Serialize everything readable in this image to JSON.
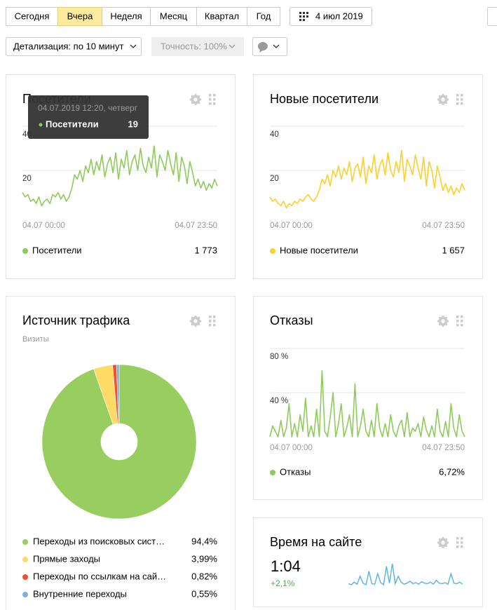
{
  "toolbar": {
    "periods": [
      "Сегодня",
      "Вчера",
      "Неделя",
      "Месяц",
      "Квартал",
      "Год"
    ],
    "selected_period": "Вчера",
    "date": "4 июл 2019",
    "detail": "Детализация: по 10 минут",
    "accuracy": "Точность: 100%"
  },
  "widgets": [
    {
      "title": "Посетители",
      "tooltip": {
        "time": "04.07.2019 12:20, четверг",
        "value": 19
      },
      "chart_data": {
        "type": "line",
        "x_labels": [
          "04.07 00:00",
          "04.07 23:50"
        ],
        "ylim": [
          0,
          40
        ],
        "yticks": [
          20,
          40
        ],
        "series": [
          {
            "name": "Посетители",
            "color": "#8fcb5b",
            "values": [
              10,
              8,
              9,
              6,
              7,
              5,
              8,
              4,
              6,
              7,
              5,
              9,
              8,
              10,
              7,
              9,
              6,
              8,
              12,
              18,
              16,
              20,
              15,
              22,
              19,
              25,
              18,
              24,
              20,
              27,
              17,
              23,
              26,
              19,
              28,
              16,
              25,
              21,
              29,
              18,
              24,
              27,
              20,
              30,
              22,
              19,
              26,
              21,
              31,
              17,
              27,
              24,
              20,
              29,
              23,
              18,
              28,
              15,
              26,
              22,
              14,
              24,
              19,
              13,
              16,
              12,
              15,
              11,
              14,
              12,
              16,
              13
            ]
          }
        ],
        "total": 1773,
        "total_label": "1 773"
      }
    },
    {
      "title": "Новые посетители",
      "chart_data": {
        "type": "line",
        "x_labels": [
          "04.07 00:00",
          "04.07 23:50"
        ],
        "ylim": [
          0,
          40
        ],
        "yticks": [
          20,
          40
        ],
        "series": [
          {
            "name": "Новые посетители",
            "color": "#fcd02d",
            "values": [
              8,
              6,
              7,
              5,
              4,
              6,
              3,
              5,
              4,
              6,
              5,
              7,
              6,
              8,
              9,
              7,
              6,
              8,
              11,
              16,
              14,
              18,
              13,
              20,
              17,
              22,
              16,
              21,
              18,
              24,
              15,
              21,
              23,
              17,
              26,
              14,
              22,
              19,
              27,
              16,
              22,
              25,
              18,
              28,
              20,
              17,
              24,
              19,
              29,
              15,
              25,
              22,
              18,
              27,
              21,
              16,
              26,
              13,
              24,
              20,
              12,
              22,
              17,
              11,
              14,
              10,
              13,
              9,
              12,
              10,
              14,
              11
            ]
          }
        ],
        "total": 1657,
        "total_label": "1 657"
      }
    },
    {
      "title": "Источник трафика",
      "subtitle": "Визиты",
      "chart_data": {
        "type": "pie",
        "categories": [
          "Переходы из поисковых сист…",
          "Прямые заходы",
          "Переходы по ссылкам на сай…",
          "Внутренние переходы"
        ],
        "values": [
          94.4,
          3.99,
          0.82,
          0.55
        ],
        "value_labels": [
          "94,4%",
          "3,99%",
          "0,82%",
          "0,55%"
        ],
        "colors": [
          "#98cd5f",
          "#fddb66",
          "#f0522f",
          "#7eb1e0"
        ]
      }
    },
    {
      "title": "Отказы",
      "chart_data": {
        "type": "line",
        "x_labels": [
          "04.07 00:00",
          "04.07 23:50"
        ],
        "ylim": [
          0,
          80
        ],
        "yticks": [
          {
            "value": 40,
            "label": "40 %"
          },
          {
            "value": 80,
            "label": "80 %"
          }
        ],
        "series": [
          {
            "name": "Отказы",
            "color": "#8fcb5b",
            "values": [
              0,
              10,
              5,
              0,
              15,
              0,
              8,
              30,
              0,
              12,
              0,
              20,
              5,
              35,
              0,
              10,
              0,
              25,
              0,
              60,
              5,
              0,
              18,
              40,
              0,
              12,
              30,
              0,
              8,
              20,
              0,
              48,
              0,
              10,
              25,
              5,
              0,
              15,
              0,
              30,
              8,
              0,
              12,
              0,
              20,
              5,
              0,
              10,
              15,
              0,
              22,
              0,
              8,
              5,
              12,
              0,
              18,
              6,
              0,
              10,
              0,
              25,
              5,
              0,
              14,
              0,
              30,
              8,
              0,
              20,
              5,
              0
            ]
          }
        ],
        "total": 6.72,
        "total_label": "6,72%"
      }
    },
    {
      "title": "Время на сайте",
      "value": "1:04",
      "change": "+2,1%",
      "chart_data": {
        "type": "sparkline",
        "color": "#5ab3e0",
        "values": [
          5,
          3,
          8,
          4,
          20,
          6,
          3,
          30,
          5,
          4,
          25,
          7,
          3,
          40,
          6,
          45,
          5,
          20,
          8,
          4,
          6,
          10,
          5,
          7,
          4,
          9,
          6,
          5,
          8,
          4,
          12,
          6,
          5,
          7,
          4,
          25,
          6,
          5,
          8,
          4
        ]
      }
    }
  ]
}
